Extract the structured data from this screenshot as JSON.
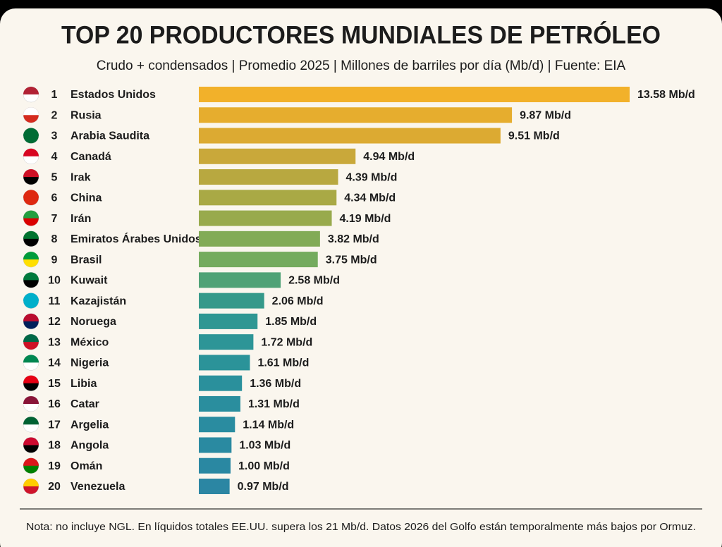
{
  "chart_data": {
    "type": "bar",
    "orientation": "horizontal",
    "title": "TOP 20 PRODUCTORES MUNDIALES DE PETRÓLEO",
    "subtitle": "Crudo + condensados | Promedio 2025 | Millones de barriles por día (Mb/d) | Fuente: EIA",
    "ranks": [
      1,
      2,
      3,
      4,
      5,
      6,
      7,
      8,
      9,
      10,
      11,
      12,
      13,
      14,
      15,
      16,
      17,
      18,
      19,
      20
    ],
    "categories": [
      "Estados Unidos",
      "Rusia",
      "Arabia Saudita",
      "Canadá",
      "Irak",
      "China",
      "Irán",
      "Emiratos Árabes Unidos",
      "Brasil",
      "Kuwait",
      "Kazajistán",
      "Noruega",
      "México",
      "Nigeria",
      "Libia",
      "Catar",
      "Argelia",
      "Angola",
      "Omán",
      "Venezuela"
    ],
    "values": [
      13.58,
      9.87,
      9.51,
      4.94,
      4.39,
      4.34,
      4.19,
      3.82,
      3.75,
      2.58,
      2.06,
      1.85,
      1.72,
      1.61,
      1.36,
      1.31,
      1.14,
      1.03,
      1.0,
      0.97
    ],
    "value_labels": [
      "13.58 Mb/d",
      "9.87 Mb/d",
      "9.51 Mb/d",
      "4.94 Mb/d",
      "4.39 Mb/d",
      "4.34 Mb/d",
      "4.19 Mb/d",
      "3.82 Mb/d",
      "3.75 Mb/d",
      "2.58 Mb/d",
      "2.06 Mb/d",
      "1.85 Mb/d",
      "1.72 Mb/d",
      "1.61 Mb/d",
      "1.36 Mb/d",
      "1.31 Mb/d",
      "1.14 Mb/d",
      "1.03 Mb/d",
      "1.00 Mb/d",
      "0.97 Mb/d"
    ],
    "colors": [
      "#f2b12a",
      "#e6ad2e",
      "#dcaa32",
      "#c9a83a",
      "#b8a840",
      "#a9a945",
      "#98aa4c",
      "#82ab56",
      "#74ab5e",
      "#4fa276",
      "#35998a",
      "#2f9793",
      "#2d9597",
      "#2b9399",
      "#2a909c",
      "#2a8e9e",
      "#2a8ca0",
      "#2a8aa1",
      "#2a88a2",
      "#2b86a3"
    ],
    "note": "Nota: no incluye NGL. En líquidos totales EE.UU. supera los 21 Mb/d. Datos 2026 del Golfo están temporalmente más bajos por Ormuz."
  }
}
